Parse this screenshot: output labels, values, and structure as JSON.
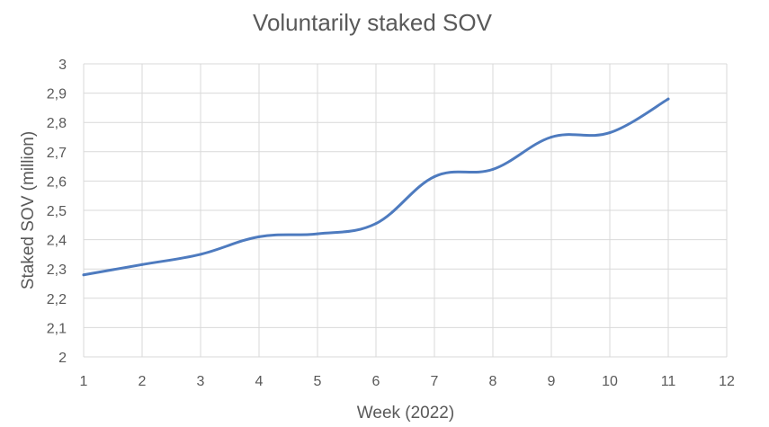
{
  "chart_data": {
    "type": "line",
    "title": "Voluntarily staked SOV",
    "xlabel": "Week (2022)",
    "ylabel": "Staked SOV (million)",
    "x_ticks": [
      "1",
      "2",
      "3",
      "4",
      "5",
      "6",
      "7",
      "8",
      "9",
      "10",
      "11",
      "12"
    ],
    "y_ticks": [
      "2",
      "2,1",
      "2,2",
      "2,3",
      "2,4",
      "2,5",
      "2,6",
      "2,7",
      "2,8",
      "2,9",
      "3"
    ],
    "xlim": [
      1,
      12
    ],
    "ylim": [
      2,
      3
    ],
    "grid": true,
    "smooth": true,
    "series": [
      {
        "x": [
          1,
          2,
          3,
          4,
          5,
          6,
          7,
          8,
          9,
          10,
          11
        ],
        "values": [
          2.28,
          2.315,
          2.35,
          2.41,
          2.42,
          2.455,
          2.615,
          2.64,
          2.75,
          2.765,
          2.88
        ],
        "color": "#4e7bbf"
      }
    ]
  }
}
